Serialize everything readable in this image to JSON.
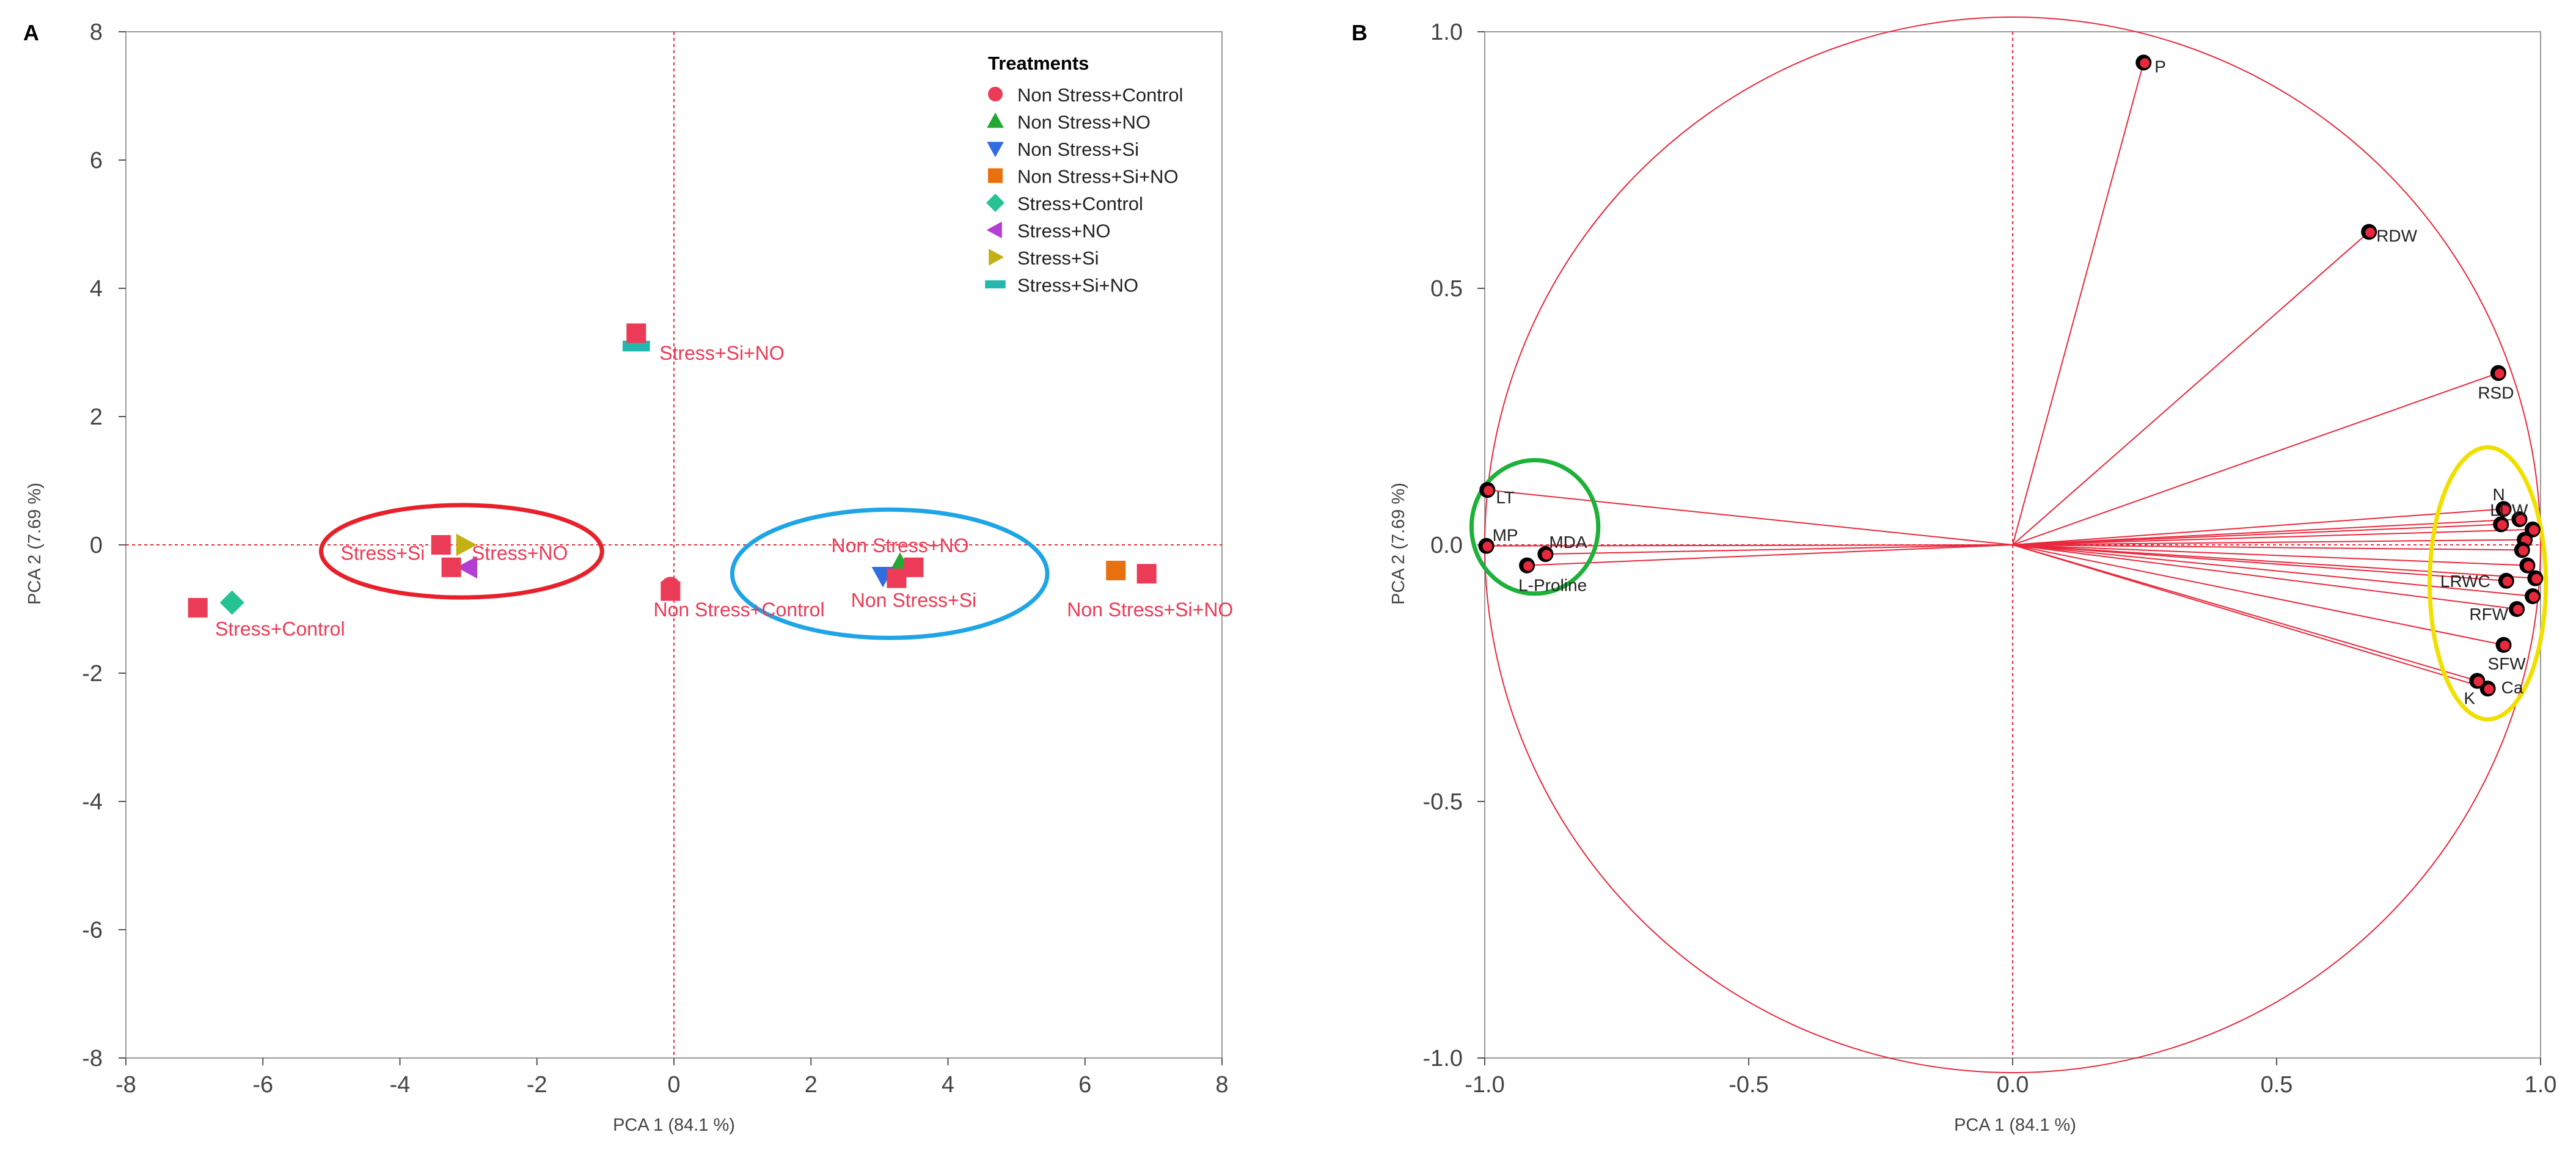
{
  "chart_data": [
    {
      "panel_letter": "A",
      "type": "scatter",
      "xlabel": "PCA 1  (84.1 %)",
      "ylabel": "PCA 2  (7.69 %)",
      "xlim": [
        -8,
        8
      ],
      "ylim": [
        -8,
        8
      ],
      "xticks": [
        "-8",
        "-6",
        "-4",
        "-2",
        "0",
        "2",
        "4",
        "6",
        "8"
      ],
      "yticks": [
        "8",
        "6",
        "4",
        "2",
        "0",
        "-2",
        "-4",
        "-6",
        "-8"
      ],
      "legend": {
        "title": "Treatments",
        "position": "top-right",
        "entries": [
          {
            "label": "Non Stress+Control",
            "marker": "circle",
            "color": "#ec3b57"
          },
          {
            "label": "Non Stress+NO",
            "marker": "triangle-up",
            "color": "#22a833"
          },
          {
            "label": "Non Stress+Si",
            "marker": "triangle-down",
            "color": "#2f6ee0"
          },
          {
            "label": "Non Stress+Si+NO",
            "marker": "square",
            "color": "#e8700f"
          },
          {
            "label": "Stress+Control",
            "marker": "diamond",
            "color": "#25c294"
          },
          {
            "label": "Stress+NO",
            "marker": "triangle-left",
            "color": "#b23ed2"
          },
          {
            "label": "Stress+Si",
            "marker": "triangle-right",
            "color": "#c2b014"
          },
          {
            "label": "Stress+Si+NO",
            "marker": "bar",
            "color": "#22b8b0"
          }
        ]
      },
      "points": [
        {
          "x": -0.05,
          "y": -0.65,
          "marker": "circle",
          "color": "#ec3b57"
        },
        {
          "x": -0.05,
          "y": -0.72,
          "marker": "square",
          "color": "#ec3b57"
        },
        {
          "x": 3.3,
          "y": -0.3,
          "marker": "triangle-up",
          "color": "#22a833"
        },
        {
          "x": 3.5,
          "y": -0.35,
          "marker": "square",
          "color": "#ec3b57"
        },
        {
          "x": 3.05,
          "y": -0.48,
          "marker": "triangle-down",
          "color": "#2f6ee0"
        },
        {
          "x": 3.25,
          "y": -0.52,
          "marker": "square",
          "color": "#ec3b57"
        },
        {
          "x": 6.45,
          "y": -0.4,
          "marker": "square",
          "color": "#e8700f"
        },
        {
          "x": 6.9,
          "y": -0.45,
          "marker": "square",
          "color": "#ec3b57"
        },
        {
          "x": -6.45,
          "y": -0.9,
          "marker": "diamond",
          "color": "#25c294"
        },
        {
          "x": -6.95,
          "y": -0.98,
          "marker": "square",
          "color": "#ec3b57"
        },
        {
          "x": -3.0,
          "y": -0.35,
          "marker": "triangle-left",
          "color": "#b23ed2"
        },
        {
          "x": -3.25,
          "y": -0.35,
          "marker": "square",
          "color": "#ec3b57"
        },
        {
          "x": -3.05,
          "y": 0.0,
          "marker": "triangle-right",
          "color": "#c2b014"
        },
        {
          "x": -3.4,
          "y": 0.0,
          "marker": "square",
          "color": "#ec3b57"
        },
        {
          "x": -0.55,
          "y": 3.1,
          "marker": "bar",
          "color": "#22b8b0"
        },
        {
          "x": -0.55,
          "y": 3.3,
          "marker": "square",
          "color": "#ec3b57"
        }
      ],
      "point_labels": [
        {
          "text": "Non Stress+Control",
          "x": 0.95,
          "y": -1.0
        },
        {
          "text": "Non Stress+NO",
          "x": 3.3,
          "y": 0.0
        },
        {
          "text": "Non Stress+Si",
          "x": 3.5,
          "y": -0.85
        },
        {
          "text": "Non Stress+Si+NO",
          "x": 6.95,
          "y": -1.0
        },
        {
          "text": "Stress+Control",
          "x": -5.75,
          "y": -1.3
        },
        {
          "text": "Stress+NO",
          "x": -2.25,
          "y": -0.12
        },
        {
          "text": "Stress+Si",
          "x": -4.25,
          "y": -0.12
        },
        {
          "text": "Stress+Si+NO",
          "x": 0.7,
          "y": 3.0
        }
      ],
      "groups": [
        {
          "name": "stress-si-group",
          "cx": -3.1,
          "cy": -0.1,
          "rx": 2.05,
          "ry": 0.72,
          "color": "#e8202a"
        },
        {
          "name": "non-stress-group",
          "cx": 3.15,
          "cy": -0.45,
          "rx": 2.3,
          "ry": 1.0,
          "color": "#1fa5e6"
        }
      ]
    },
    {
      "panel_letter": "B",
      "type": "scatter",
      "subtype": "loading-plot",
      "xlabel": "PCA 1  (84.1 %)",
      "ylabel": "PCA 2  (7.69 %)",
      "xlim": [
        -1.0,
        1.0
      ],
      "ylim": [
        -1.0,
        1.0
      ],
      "xticks": [
        "-1.0",
        "-0.5",
        "0.0",
        "0.5",
        "1.0"
      ],
      "yticks": [
        "1.0",
        "0.5",
        "0.0",
        "-0.5",
        "-1.0"
      ],
      "variables": [
        {
          "name": "P",
          "x": 0.248,
          "y": 0.94
        },
        {
          "name": "RDW",
          "x": 0.675,
          "y": 0.61
        },
        {
          "name": "RSD",
          "x": 0.92,
          "y": 0.335
        },
        {
          "name": "LT",
          "x": -0.995,
          "y": 0.107
        },
        {
          "name": "MP",
          "x": -0.997,
          "y": -0.002
        },
        {
          "name": "MDA",
          "x": -0.885,
          "y": -0.018
        },
        {
          "name": "L-Proline",
          "x": -0.92,
          "y": -0.04
        },
        {
          "name": "N",
          "x": 0.93,
          "y": 0.07
        },
        {
          "name": "LDW",
          "x": 0.925,
          "y": 0.04
        },
        {
          "name": "LRWC",
          "x": 0.935,
          "y": -0.07
        },
        {
          "name": "RFW",
          "x": 0.955,
          "y": -0.125
        },
        {
          "name": "SFW",
          "x": 0.93,
          "y": -0.195
        },
        {
          "name": "Ca",
          "x": 0.9,
          "y": -0.28
        },
        {
          "name": "K",
          "x": 0.88,
          "y": -0.265
        },
        {
          "name": "",
          "x": 0.96,
          "y": 0.05
        },
        {
          "name": "",
          "x": 0.985,
          "y": 0.03
        },
        {
          "name": "",
          "x": 0.97,
          "y": 0.01
        },
        {
          "name": "",
          "x": 0.965,
          "y": -0.01
        },
        {
          "name": "",
          "x": 0.975,
          "y": -0.04
        },
        {
          "name": "",
          "x": 0.99,
          "y": -0.065
        },
        {
          "name": "",
          "x": 0.985,
          "y": -0.1
        }
      ],
      "groups": [
        {
          "name": "negative-loading-group",
          "cx": -0.905,
          "cy": 0.035,
          "rx": 0.12,
          "ry": 0.13,
          "color": "#1db13a"
        },
        {
          "name": "positive-loading-group",
          "cx": 0.9,
          "cy": -0.075,
          "rx": 0.11,
          "ry": 0.265,
          "color": "#f0e000"
        }
      ]
    }
  ]
}
